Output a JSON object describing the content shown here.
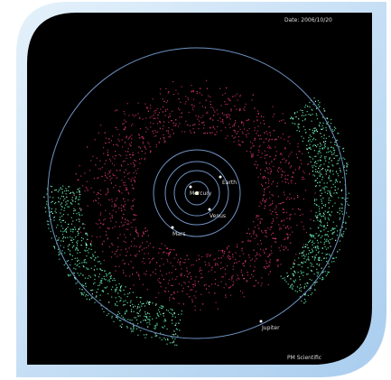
{
  "date": "Date: 2006/10/20",
  "planets": [
    "Mercury",
    "Venus",
    "Earth",
    "Mars",
    "Jupiter"
  ],
  "credit": "PM Scientific"
}
